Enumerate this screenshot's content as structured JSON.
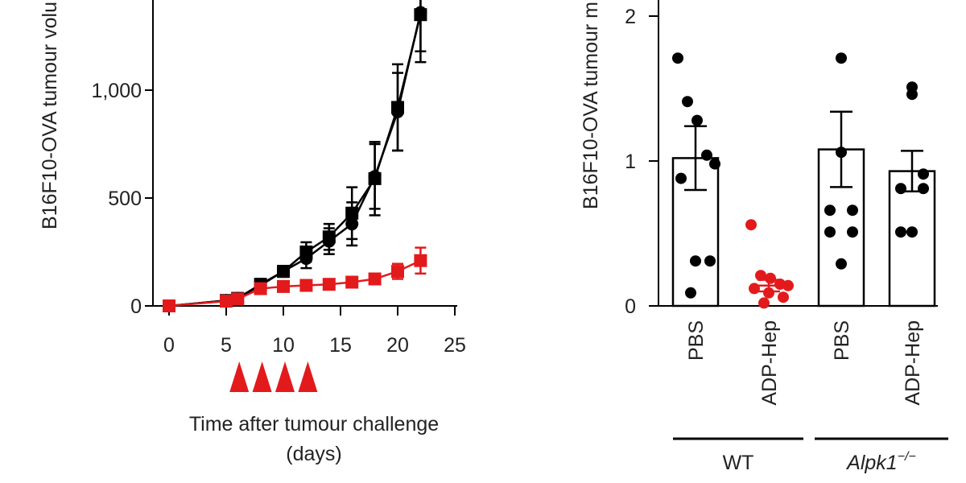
{
  "colors": {
    "control": "#000000",
    "treated": "#e31a1c"
  },
  "chart_data": [
    {
      "type": "line",
      "ylabel": "B16F10-OVA tumour volu",
      "xlabel_line1": "Time after tumour challenge",
      "xlabel_line2": "(days)",
      "xlim": [
        0,
        25
      ],
      "ylim": [
        0,
        1400
      ],
      "x_ticks": [
        "0",
        "5",
        "10",
        "15",
        "20",
        "25"
      ],
      "y_ticks": [
        "0",
        "500",
        "1,000"
      ],
      "x": [
        0,
        5,
        6,
        8,
        10,
        12,
        14,
        16,
        18,
        20,
        22
      ],
      "series": [
        {
          "values": [
            0,
            25,
            35,
            100,
            160,
            250,
            320,
            430,
            590,
            920,
            1350
          ],
          "errors": [
            0,
            5,
            8,
            25,
            25,
            45,
            60,
            120,
            170,
            200,
            220
          ],
          "marker": "square",
          "color": "control"
        },
        {
          "values": [
            0,
            25,
            35,
            95,
            160,
            220,
            300,
            380,
            600,
            900,
            1360
          ],
          "errors": [
            0,
            5,
            8,
            25,
            25,
            45,
            60,
            100,
            150,
            180,
            180
          ],
          "marker": "circle",
          "color": "control"
        },
        {
          "values": [
            0,
            22,
            32,
            80,
            90,
            95,
            100,
            110,
            125,
            160,
            210
          ],
          "errors": [
            0,
            5,
            5,
            10,
            10,
            10,
            10,
            15,
            20,
            35,
            60
          ],
          "marker": "square",
          "color": "treated"
        }
      ],
      "treatment_days": [
        6,
        8,
        10,
        12
      ]
    },
    {
      "type": "bar",
      "ylabel": "B16F10-OVA tumour m",
      "ylim": [
        0,
        2
      ],
      "y_ticks": [
        "0",
        "1",
        "2"
      ],
      "categories": [
        "PBS",
        "ADP-Hep",
        "PBS",
        "ADP-Hep"
      ],
      "groups": [
        {
          "label": "WT",
          "italic": false,
          "superscript": ""
        },
        {
          "label": "Alpk1",
          "italic": true,
          "superscript": "−/−"
        }
      ],
      "values": [
        1.02,
        0.14,
        1.08,
        0.93
      ],
      "errors": [
        0.22,
        0.04,
        0.26,
        0.14
      ],
      "bar_colors": [
        "control",
        "treated",
        "control",
        "control"
      ],
      "points": [
        [
          1.71,
          1.41,
          1.28,
          1.04,
          0.98,
          0.88,
          0.31,
          0.31,
          0.09
        ],
        [
          0.56,
          0.21,
          0.19,
          0.15,
          0.14,
          0.12,
          0.09,
          0.06,
          0.02
        ],
        [
          1.71,
          1.06,
          0.66,
          0.66,
          0.51,
          0.51,
          0.29
        ],
        [
          1.51,
          1.46,
          0.91,
          0.81,
          0.81,
          0.51,
          0.51
        ]
      ]
    }
  ]
}
